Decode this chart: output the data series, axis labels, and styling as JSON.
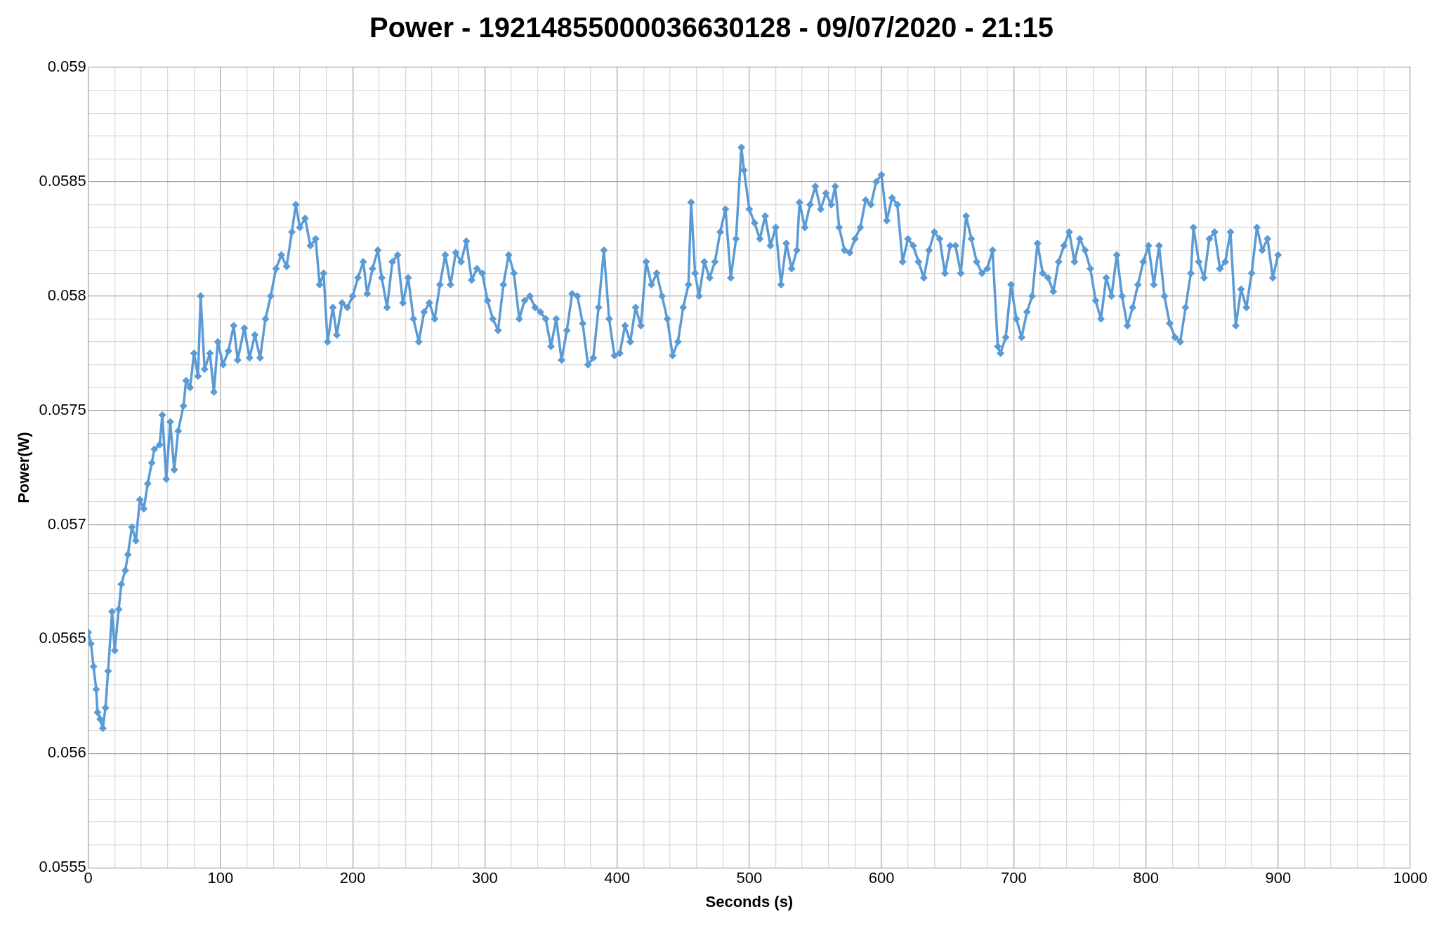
{
  "chart_data": {
    "type": "line",
    "title": "Power - 19214855000036630128 - 09/07/2020 - 21:15",
    "xlabel": "Seconds (s)",
    "ylabel": "Power(W)",
    "xlim": [
      0,
      1000
    ],
    "ylim": [
      0.0555,
      0.059
    ],
    "xticks": [
      0,
      {
        "value": 20,
        "label": null
      },
      {
        "value": 40,
        "label": null
      },
      {
        "value": 60,
        "label": null
      },
      {
        "value": 80,
        "label": null
      },
      100,
      {
        "value": 120,
        "label": null
      },
      {
        "value": 140,
        "label": null
      },
      {
        "value": 160,
        "label": null
      },
      {
        "value": 180,
        "label": null
      },
      200,
      {
        "value": 220,
        "label": null
      },
      {
        "value": 240,
        "label": null
      },
      {
        "value": 260,
        "label": null
      },
      {
        "value": 280,
        "label": null
      },
      300,
      {
        "value": 320,
        "label": null
      },
      {
        "value": 340,
        "label": null
      },
      {
        "value": 360,
        "label": null
      },
      {
        "value": 380,
        "label": null
      },
      400,
      {
        "value": 420,
        "label": null
      },
      {
        "value": 440,
        "label": null
      },
      {
        "value": 460,
        "label": null
      },
      {
        "value": 480,
        "label": null
      },
      500,
      {
        "value": 520,
        "label": null
      },
      {
        "value": 540,
        "label": null
      },
      {
        "value": 560,
        "label": null
      },
      {
        "value": 580,
        "label": null
      },
      600,
      {
        "value": 620,
        "label": null
      },
      {
        "value": 640,
        "label": null
      },
      {
        "value": 660,
        "label": null
      },
      {
        "value": 680,
        "label": null
      },
      700,
      {
        "value": 720,
        "label": null
      },
      {
        "value": 740,
        "label": null
      },
      {
        "value": 760,
        "label": null
      },
      {
        "value": 780,
        "label": null
      },
      800,
      {
        "value": 820,
        "label": null
      },
      {
        "value": 840,
        "label": null
      },
      {
        "value": 860,
        "label": null
      },
      {
        "value": 880,
        "label": null
      },
      900,
      {
        "value": 920,
        "label": null
      },
      {
        "value": 940,
        "label": null
      },
      {
        "value": 960,
        "label": null
      },
      {
        "value": 980,
        "label": null
      },
      1000
    ],
    "yticks": [
      0.0555,
      {
        "value": 0.0556,
        "label": null
      },
      {
        "value": 0.0557,
        "label": null
      },
      {
        "value": 0.0558,
        "label": null
      },
      {
        "value": 0.0559,
        "label": null
      },
      0.056,
      {
        "value": 0.0561,
        "label": null
      },
      {
        "value": 0.0562,
        "label": null
      },
      {
        "value": 0.0563,
        "label": null
      },
      {
        "value": 0.0564,
        "label": null
      },
      0.0565,
      {
        "value": 0.0566,
        "label": null
      },
      {
        "value": 0.0567,
        "label": null
      },
      {
        "value": 0.0568,
        "label": null
      },
      {
        "value": 0.0569,
        "label": null
      },
      0.057,
      {
        "value": 0.0571,
        "label": null
      },
      {
        "value": 0.0572,
        "label": null
      },
      {
        "value": 0.0573,
        "label": null
      },
      {
        "value": 0.0574,
        "label": null
      },
      0.0575,
      {
        "value": 0.0576,
        "label": null
      },
      {
        "value": 0.0577,
        "label": null
      },
      {
        "value": 0.0578,
        "label": null
      },
      {
        "value": 0.0579,
        "label": null
      },
      0.058,
      {
        "value": 0.0581,
        "label": null
      },
      {
        "value": 0.0582,
        "label": null
      },
      {
        "value": 0.0583,
        "label": null
      },
      {
        "value": 0.0584,
        "label": null
      },
      0.0585,
      {
        "value": 0.0586,
        "label": null
      },
      {
        "value": 0.0587,
        "label": null
      },
      {
        "value": 0.0588,
        "label": null
      },
      {
        "value": 0.0589,
        "label": null
      },
      0.059
    ],
    "grid": true,
    "legend": false,
    "marker": "diamond",
    "line_style": "solid",
    "series": [
      {
        "color": "#5b9bd5",
        "x": [
          0,
          2,
          4,
          6,
          7,
          9,
          11,
          13,
          15,
          18,
          20,
          23,
          25,
          28,
          30,
          33,
          36,
          39,
          42,
          45,
          48,
          50,
          54,
          56,
          59,
          62,
          65,
          68,
          72,
          74,
          77,
          80,
          83,
          85,
          88,
          92,
          95,
          98,
          102,
          106,
          110,
          113,
          118,
          122,
          126,
          130,
          134,
          138,
          142,
          146,
          150,
          154,
          157,
          160,
          164,
          168,
          172,
          175,
          178,
          181,
          185,
          188,
          192,
          196,
          200,
          204,
          208,
          211,
          215,
          219,
          222,
          226,
          230,
          234,
          238,
          242,
          246,
          250,
          254,
          258,
          262,
          266,
          270,
          274,
          278,
          282,
          286,
          290,
          294,
          298,
          302,
          306,
          310,
          314,
          318,
          322,
          326,
          330,
          334,
          338,
          342,
          346,
          350,
          354,
          358,
          362,
          366,
          370,
          374,
          378,
          382,
          386,
          390,
          394,
          398,
          402,
          406,
          410,
          414,
          418,
          422,
          426,
          430,
          434,
          438,
          442,
          446,
          450,
          454,
          456,
          459,
          462,
          466,
          470,
          474,
          478,
          482,
          486,
          490,
          494,
          496,
          500,
          504,
          508,
          512,
          516,
          520,
          524,
          528,
          532,
          536,
          538,
          542,
          546,
          550,
          554,
          558,
          562,
          565,
          568,
          572,
          576,
          580,
          584,
          588,
          592,
          596,
          600,
          604,
          608,
          612,
          616,
          620,
          624,
          628,
          632,
          636,
          640,
          644,
          648,
          652,
          656,
          660,
          664,
          668,
          672,
          676,
          680,
          684,
          688,
          690,
          694,
          698,
          702,
          706,
          710,
          714,
          718,
          722,
          726,
          730,
          734,
          738,
          742,
          746,
          750,
          754,
          758,
          762,
          766,
          770,
          774,
          778,
          782,
          786,
          790,
          794,
          798,
          802,
          806,
          810,
          814,
          818,
          822,
          826,
          830,
          834,
          836,
          840,
          844,
          848,
          852,
          856,
          860,
          864,
          868,
          872,
          876,
          880,
          884,
          888,
          892,
          896,
          900
        ],
        "values": [
          0.05653,
          0.05648,
          0.05638,
          0.05628,
          0.05618,
          0.05615,
          0.05611,
          0.0562,
          0.05636,
          0.05662,
          0.05645,
          0.05663,
          0.05674,
          0.0568,
          0.05687,
          0.05699,
          0.05693,
          0.05711,
          0.05707,
          0.05718,
          0.05727,
          0.05733,
          0.05735,
          0.05748,
          0.0572,
          0.05745,
          0.05724,
          0.05741,
          0.05752,
          0.05763,
          0.0576,
          0.05775,
          0.05765,
          0.058,
          0.05768,
          0.05775,
          0.05758,
          0.0578,
          0.0577,
          0.05776,
          0.05787,
          0.05772,
          0.05786,
          0.05773,
          0.05783,
          0.05773,
          0.0579,
          0.058,
          0.05812,
          0.05818,
          0.05813,
          0.05828,
          0.0584,
          0.0583,
          0.05834,
          0.05822,
          0.05825,
          0.05805,
          0.0581,
          0.0578,
          0.05795,
          0.05783,
          0.05797,
          0.05795,
          0.058,
          0.05808,
          0.05815,
          0.05801,
          0.05812,
          0.0582,
          0.05808,
          0.05795,
          0.05815,
          0.05818,
          0.05797,
          0.05808,
          0.0579,
          0.0578,
          0.05793,
          0.05797,
          0.0579,
          0.05805,
          0.05818,
          0.05805,
          0.05819,
          0.05815,
          0.05824,
          0.05807,
          0.05812,
          0.0581,
          0.05798,
          0.0579,
          0.05785,
          0.05805,
          0.05818,
          0.0581,
          0.0579,
          0.05798,
          0.058,
          0.05795,
          0.05793,
          0.0579,
          0.05778,
          0.0579,
          0.05772,
          0.05785,
          0.05801,
          0.058,
          0.05788,
          0.0577,
          0.05773,
          0.05795,
          0.0582,
          0.0579,
          0.05774,
          0.05775,
          0.05787,
          0.0578,
          0.05795,
          0.05787,
          0.05815,
          0.05805,
          0.0581,
          0.058,
          0.0579,
          0.05774,
          0.0578,
          0.05795,
          0.05805,
          0.05841,
          0.0581,
          0.058,
          0.05815,
          0.05808,
          0.05815,
          0.05828,
          0.05838,
          0.05808,
          0.05825,
          0.05865,
          0.05855,
          0.05838,
          0.05832,
          0.05825,
          0.05835,
          0.05822,
          0.0583,
          0.05805,
          0.05823,
          0.05812,
          0.0582,
          0.05841,
          0.0583,
          0.0584,
          0.05848,
          0.05838,
          0.05845,
          0.0584,
          0.05848,
          0.0583,
          0.0582,
          0.05819,
          0.05825,
          0.0583,
          0.05842,
          0.0584,
          0.0585,
          0.05853,
          0.05833,
          0.05843,
          0.0584,
          0.05815,
          0.05825,
          0.05822,
          0.05815,
          0.05808,
          0.0582,
          0.05828,
          0.05825,
          0.0581,
          0.05822,
          0.05822,
          0.0581,
          0.05835,
          0.05825,
          0.05815,
          0.0581,
          0.05812,
          0.0582,
          0.05778,
          0.05775,
          0.05782,
          0.05805,
          0.0579,
          0.05782,
          0.05793,
          0.058,
          0.05823,
          0.0581,
          0.05808,
          0.05802,
          0.05815,
          0.05822,
          0.05828,
          0.05815,
          0.05825,
          0.0582,
          0.05812,
          0.05798,
          0.0579,
          0.05808,
          0.058,
          0.05818,
          0.058,
          0.05787,
          0.05795,
          0.05805,
          0.05815,
          0.05822,
          0.05805,
          0.05822,
          0.058,
          0.05788,
          0.05782,
          0.0578,
          0.05795,
          0.0581,
          0.0583,
          0.05815,
          0.05808,
          0.05825,
          0.05828,
          0.05812,
          0.05815,
          0.05828,
          0.05787,
          0.05803,
          0.05795,
          0.0581,
          0.0583,
          0.0582,
          0.05825,
          0.05808,
          0.05818
        ]
      }
    ]
  }
}
